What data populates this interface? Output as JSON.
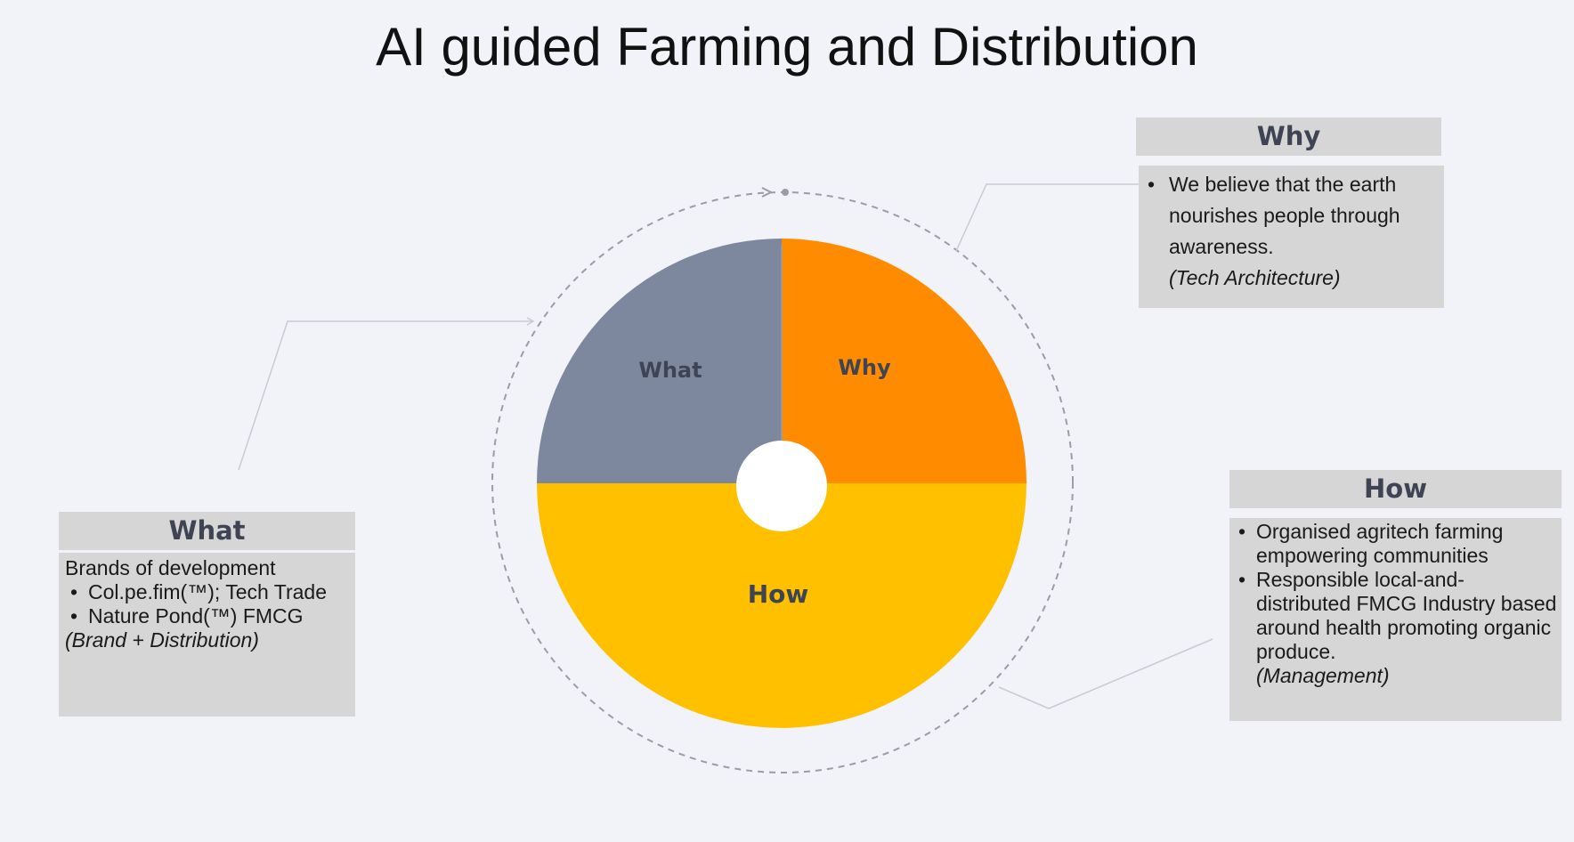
{
  "title": "AI guided Farming and Distribution",
  "wheel": {
    "segments": [
      {
        "label": "What",
        "share": 0.25,
        "color": "#7d889f"
      },
      {
        "label": "Why",
        "share": 0.25,
        "color": "#ff8b00"
      },
      {
        "label": "How",
        "share": 0.5,
        "color": "#ffc000"
      }
    ],
    "center_color": "#ffffff",
    "ring_color": "#9a9da6"
  },
  "what_box": {
    "header": "What",
    "intro": "Brands of development",
    "items": [
      "Col.pe.fim(™); Tech Trade",
      "Nature Pond(™) FMCG"
    ],
    "note": "(Brand + Distribution)"
  },
  "why_box": {
    "header": "Why",
    "items": [
      "We believe that the earth nourishes people through awareness."
    ],
    "note": "(Tech Architecture)"
  },
  "how_box": {
    "header": "How",
    "items": [
      "Organised agritech farming empowering communities",
      "Responsible local-and-distributed FMCG Industry based around health promoting organic produce."
    ],
    "note": "(Management)"
  },
  "bullet_glyph": "•"
}
